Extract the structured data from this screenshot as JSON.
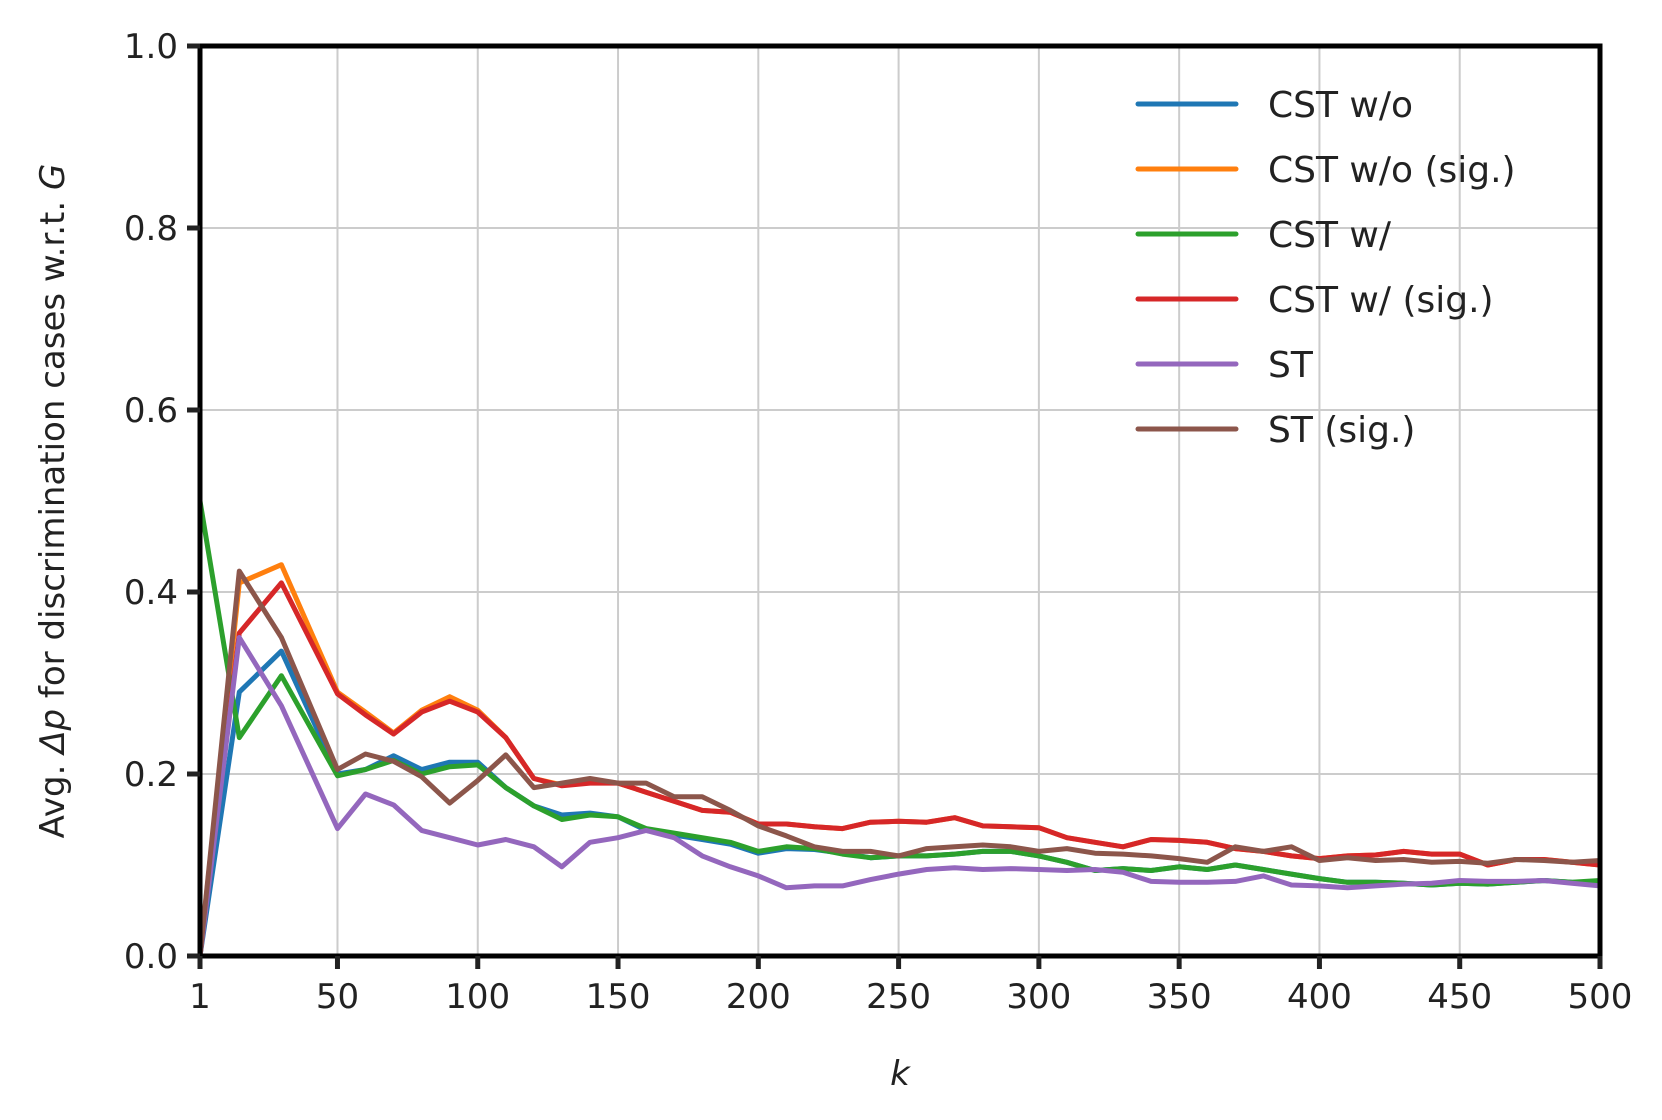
{
  "chart_data": {
    "type": "line",
    "xlabel": "k",
    "ylabel": "Avg. Δp for discrimination cases w.r.t. G",
    "ylabel_parts": {
      "pre": "Avg. ",
      "delta": "Δ",
      "p": "p",
      "mid": " for discrimination cases w.r.t. ",
      "g": "G"
    },
    "xlim": [
      1,
      500
    ],
    "ylim": [
      0.0,
      1.0
    ],
    "xticks": [
      1,
      50,
      100,
      150,
      200,
      250,
      300,
      350,
      400,
      450,
      500
    ],
    "xtick_labels": [
      "1",
      "50",
      "100",
      "150",
      "200",
      "250",
      "300",
      "350",
      "400",
      "450",
      "500"
    ],
    "yticks": [
      0.0,
      0.2,
      0.4,
      0.6,
      0.8,
      1.0
    ],
    "ytick_labels": [
      "0.0",
      "0.2",
      "0.4",
      "0.6",
      "0.8",
      "1.0"
    ],
    "grid": true,
    "legend_position": "top-right",
    "x": [
      1,
      15,
      30,
      50,
      60,
      70,
      80,
      90,
      100,
      110,
      120,
      130,
      140,
      150,
      160,
      170,
      180,
      190,
      200,
      210,
      220,
      230,
      240,
      250,
      260,
      270,
      280,
      290,
      300,
      310,
      320,
      330,
      340,
      350,
      360,
      370,
      380,
      390,
      400,
      410,
      420,
      430,
      440,
      450,
      460,
      470,
      480,
      490,
      500
    ],
    "series": [
      {
        "name": "CST w/o",
        "color": "#1f77b4",
        "values": [
          0.0,
          0.29,
          0.335,
          0.2,
          0.205,
          0.22,
          0.205,
          0.213,
          0.213,
          0.185,
          0.165,
          0.155,
          0.157,
          0.153,
          0.138,
          0.133,
          0.128,
          0.123,
          0.113,
          0.118,
          0.117,
          0.113,
          0.108,
          0.11,
          0.11,
          0.112,
          0.115,
          0.115,
          0.11,
          0.103,
          0.094,
          0.096,
          0.094,
          0.098,
          0.095,
          0.1,
          0.095,
          0.09,
          0.085,
          0.081,
          0.081,
          0.08,
          0.078,
          0.08,
          0.079,
          0.081,
          0.083,
          0.081,
          0.08
        ]
      },
      {
        "name": "CST w/o (sig.)",
        "color": "#ff7f0e",
        "values": [
          0.0,
          0.41,
          0.43,
          0.29,
          0.268,
          0.245,
          0.27,
          0.285,
          0.27,
          0.24,
          0.195,
          0.188,
          0.192,
          0.19,
          0.18,
          0.17,
          0.16,
          0.158,
          0.145,
          0.145,
          0.142,
          0.14,
          0.147,
          0.148,
          0.147,
          0.152,
          0.143,
          0.142,
          0.141,
          0.13,
          0.125,
          0.12,
          0.128,
          0.127,
          0.125,
          0.118,
          0.115,
          0.11,
          0.107,
          0.11,
          0.111,
          0.115,
          0.112,
          0.112,
          0.1,
          0.106,
          0.106,
          0.103,
          0.1
        ]
      },
      {
        "name": "CST w/",
        "color": "#2ca02c",
        "values": [
          0.5,
          0.24,
          0.308,
          0.198,
          0.205,
          0.215,
          0.2,
          0.208,
          0.21,
          0.185,
          0.165,
          0.15,
          0.155,
          0.153,
          0.14,
          0.135,
          0.13,
          0.125,
          0.115,
          0.12,
          0.118,
          0.112,
          0.108,
          0.11,
          0.11,
          0.112,
          0.115,
          0.115,
          0.11,
          0.103,
          0.094,
          0.096,
          0.094,
          0.098,
          0.095,
          0.1,
          0.095,
          0.09,
          0.085,
          0.081,
          0.081,
          0.08,
          0.078,
          0.08,
          0.079,
          0.081,
          0.083,
          0.081,
          0.083
        ]
      },
      {
        "name": "CST w/ (sig.)",
        "color": "#d62728",
        "values": [
          0.0,
          0.355,
          0.41,
          0.288,
          0.265,
          0.244,
          0.268,
          0.28,
          0.268,
          0.24,
          0.195,
          0.187,
          0.19,
          0.19,
          0.18,
          0.17,
          0.16,
          0.158,
          0.145,
          0.145,
          0.142,
          0.14,
          0.147,
          0.148,
          0.147,
          0.152,
          0.143,
          0.142,
          0.141,
          0.13,
          0.125,
          0.12,
          0.128,
          0.127,
          0.125,
          0.118,
          0.115,
          0.11,
          0.107,
          0.11,
          0.111,
          0.115,
          0.112,
          0.112,
          0.1,
          0.106,
          0.106,
          0.103,
          0.1
        ]
      },
      {
        "name": "ST",
        "color": "#9467bd",
        "values": [
          0.0,
          0.35,
          0.275,
          0.14,
          0.178,
          0.166,
          0.138,
          0.13,
          0.122,
          0.128,
          0.12,
          0.098,
          0.125,
          0.13,
          0.138,
          0.13,
          0.11,
          0.098,
          0.088,
          0.075,
          0.077,
          0.077,
          0.084,
          0.09,
          0.095,
          0.097,
          0.095,
          0.096,
          0.095,
          0.094,
          0.095,
          0.092,
          0.082,
          0.081,
          0.081,
          0.082,
          0.088,
          0.078,
          0.077,
          0.075,
          0.077,
          0.079,
          0.08,
          0.083,
          0.082,
          0.082,
          0.083,
          0.08,
          0.077
        ]
      },
      {
        "name": "ST (sig.)",
        "color": "#8c564b",
        "values": [
          0.0,
          0.423,
          0.35,
          0.205,
          0.222,
          0.214,
          0.197,
          0.168,
          0.193,
          0.221,
          0.185,
          0.19,
          0.195,
          0.19,
          0.19,
          0.175,
          0.175,
          0.16,
          0.143,
          0.132,
          0.12,
          0.115,
          0.115,
          0.11,
          0.118,
          0.12,
          0.122,
          0.12,
          0.115,
          0.118,
          0.113,
          0.112,
          0.11,
          0.107,
          0.103,
          0.12,
          0.115,
          0.12,
          0.105,
          0.108,
          0.105,
          0.106,
          0.103,
          0.104,
          0.102,
          0.106,
          0.105,
          0.103,
          0.105
        ]
      }
    ]
  }
}
